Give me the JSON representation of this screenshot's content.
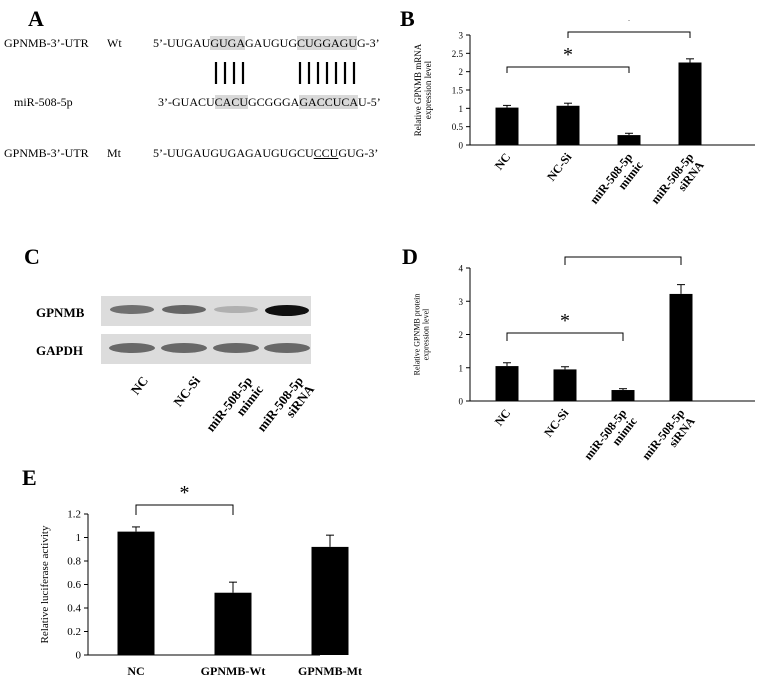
{
  "panels": {
    "A": "A",
    "B": "B",
    "C": "C",
    "D": "D",
    "E": "E"
  },
  "panel_a": {
    "wt_label": "GPNMB-3’-UTR",
    "wt_tag": "Wt",
    "wt_seq": [
      "5’-UUGAU",
      "GUGA",
      "GAUGUG",
      "CUGGAGU",
      "G-3’"
    ],
    "mir_label": "miR-508-5p",
    "mir_seq": [
      "3’-GUACU",
      "CACU",
      "GCGGGA",
      "GACCUCA",
      "U-5’"
    ],
    "mt_label": "GPNMB-3’-UTR",
    "mt_tag": "Mt",
    "mt_seq": [
      "5’-UUGAUGUGAGAUGUGCU",
      "CCU",
      "GUG-3’"
    ]
  },
  "panel_c": {
    "rows": [
      "GPNMB",
      "GAPDH"
    ],
    "lanes": [
      "NC",
      "NC-Si",
      "miR-508-5p\nmimic",
      "miR-508-5p\nsiRNA"
    ],
    "gpnmb_intensity": [
      0.55,
      0.6,
      0.25,
      1.0
    ],
    "gapdh_intensity": [
      0.7,
      0.7,
      0.7,
      0.7
    ]
  },
  "chart_data": [
    {
      "type": "bar",
      "panel": "B",
      "categories": [
        "NC",
        "NC-Si",
        "miR-508-5p\nmimic",
        "miR-508-5p\nsiRNA"
      ],
      "values": [
        1.02,
        1.07,
        0.27,
        2.25
      ],
      "errors": [
        0.06,
        0.07,
        0.05,
        0.1
      ],
      "ylabel": "Relative GPNMB mRNA\nexpression level",
      "ylim": [
        0,
        3
      ],
      "yticks": [
        "0",
        "0.5",
        "1",
        "1.5",
        "2",
        "2.5",
        "3"
      ],
      "significance": [
        {
          "from": 0,
          "to": 2,
          "label": "*"
        },
        {
          "from": 1,
          "to": 3,
          "label": "*"
        }
      ]
    },
    {
      "type": "bar",
      "panel": "D",
      "categories": [
        "NC",
        "NC-Si",
        "miR-508-5p\nmimic",
        "miR-508-5p\nsiRNA"
      ],
      "values": [
        1.05,
        0.95,
        0.33,
        3.22
      ],
      "errors": [
        0.1,
        0.08,
        0.04,
        0.28
      ],
      "ylabel": "Relative GPNMB protein\nexpression level",
      "ylim": [
        0,
        4
      ],
      "yticks": [
        "0",
        "1",
        "2",
        "3",
        "4"
      ],
      "significance": [
        {
          "from": 0,
          "to": 2,
          "label": "*"
        },
        {
          "from": 1,
          "to": 3,
          "label": "*"
        }
      ]
    },
    {
      "type": "bar",
      "panel": "E",
      "categories": [
        "NC",
        "GPNMB-Wt",
        "GPNMB-Mt"
      ],
      "values": [
        1.05,
        0.53,
        0.92
      ],
      "errors": [
        0.04,
        0.09,
        0.1
      ],
      "ylabel": "Relative luciferase activity",
      "ylim": [
        0,
        1.2
      ],
      "yticks": [
        "0",
        "0.2",
        "0.4",
        "0.6",
        "0.8",
        "1",
        "1.2"
      ],
      "significance": [
        {
          "from": 0,
          "to": 1,
          "label": "*"
        }
      ]
    }
  ]
}
